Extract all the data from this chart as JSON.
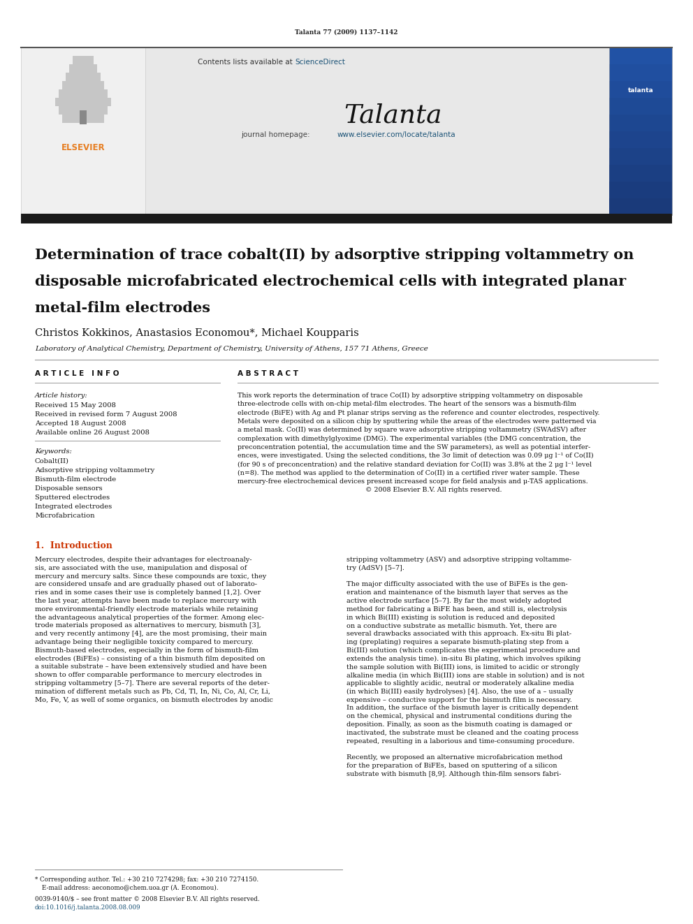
{
  "page_width": 9.92,
  "page_height": 13.23,
  "bg_color": "#ffffff",
  "journal_ref": "Talanta 77 (2009) 1137–1142",
  "sciencedirect_color": "#1a5276",
  "homepage_url_color": "#1a5276",
  "header_bg": "#e8e8e8",
  "elsevier_color": "#e67e22",
  "affiliation": "Laboratory of Analytical Chemistry, Department of Chemistry, University of Athens, 157 71 Athens, Greece",
  "keywords": [
    "Cobalt(II)",
    "Adsorptive stripping voltammetry",
    "Bismuth-film electrode",
    "Disposable sensors",
    "Sputtered electrodes",
    "Integrated electrodes",
    "Microfabrication"
  ],
  "abstract_lines": [
    "This work reports the determination of trace Co(II) by adsorptive stripping voltammetry on disposable",
    "three-electrode cells with on-chip metal-film electrodes. The heart of the sensors was a bismuth-film",
    "electrode (BiFE) with Ag and Pt planar strips serving as the reference and counter electrodes, respectively.",
    "Metals were deposited on a silicon chip by sputtering while the areas of the electrodes were patterned via",
    "a metal mask. Co(II) was determined by square wave adsorptive stripping voltammetry (SWAdSV) after",
    "complexation with dimethylglyoxime (DMG). The experimental variables (the DMG concentration, the",
    "preconcentration potential, the accumulation time and the SW parameters), as well as potential interfer-",
    "ences, were investigated. Using the selected conditions, the 3σ limit of detection was 0.09 μg l⁻¹ of Co(II)",
    "(for 90 s of preconcentration) and the relative standard deviation for Co(II) was 3.8% at the 2 μg l⁻¹ level",
    "(n=8). The method was applied to the determination of Co(II) in a certified river water sample. These",
    "mercury-free electrochemical devices present increased scope for field analysis and μ-TAS applications.",
    "                                                             © 2008 Elsevier B.V. All rights reserved."
  ],
  "col1_lines": [
    "Mercury electrodes, despite their advantages for electroanaly-",
    "sis, are associated with the use, manipulation and disposal of",
    "mercury and mercury salts. Since these compounds are toxic, they",
    "are considered unsafe and are gradually phased out of laborato-",
    "ries and in some cases their use is completely banned [1,2]. Over",
    "the last year, attempts have been made to replace mercury with",
    "more environmental-friendly electrode materials while retaining",
    "the advantageous analytical properties of the former. Among elec-",
    "trode materials proposed as alternatives to mercury, bismuth [3],",
    "and very recently antimony [4], are the most promising, their main",
    "advantage being their negligible toxicity compared to mercury.",
    "Bismuth-based electrodes, especially in the form of bismuth-film",
    "electrodes (BiFEs) – consisting of a thin bismuth film deposited on",
    "a suitable substrate – have been extensively studied and have been",
    "shown to offer comparable performance to mercury electrodes in",
    "stripping voltammetry [5–7]. There are several reports of the deter-",
    "mination of different metals such as Pb, Cd, Tl, In, Ni, Co, Al, Cr, Li,",
    "Mo, Fe, V, as well of some organics, on bismuth electrodes by anodic"
  ],
  "col2_lines": [
    "stripping voltammetry (ASV) and adsorptive stripping voltamme-",
    "try (AdSV) [5–7].",
    "",
    "The major difficulty associated with the use of BiFEs is the gen-",
    "eration and maintenance of the bismuth layer that serves as the",
    "active electrode surface [5–7]. By far the most widely adopted",
    "method for fabricating a BiFE has been, and still is, electrolysis",
    "in which Bi(III) existing is solution is reduced and deposited",
    "on a conductive substrate as metallic bismuth. Yet, there are",
    "several drawbacks associated with this approach. Ex-situ Bi plat-",
    "ing (preplating) requires a separate bismuth-plating step from a",
    "Bi(III) solution (which complicates the experimental procedure and",
    "extends the analysis time). in-situ Bi plating, which involves spiking",
    "the sample solution with Bi(III) ions, is limited to acidic or strongly",
    "alkaline media (in which Bi(III) ions are stable in solution) and is not",
    "applicable to slightly acidic, neutral or moderately alkaline media",
    "(in which Bi(III) easily hydrolyses) [4]. Also, the use of a – usually",
    "expensive – conductive support for the bismuth film is necessary.",
    "In addition, the surface of the bismuth layer is critically dependent",
    "on the chemical, physical and instrumental conditions during the",
    "deposition. Finally, as soon as the bismuth coating is damaged or",
    "inactivated, the substrate must be cleaned and the coating process",
    "repeated, resulting in a laborious and time-consuming procedure.",
    "",
    "Recently, we proposed an alternative microfabrication method",
    "for the preparation of BiFEs, based on sputtering of a silicon",
    "substrate with bismuth [8,9]. Although thin-film sensors fabri-"
  ]
}
